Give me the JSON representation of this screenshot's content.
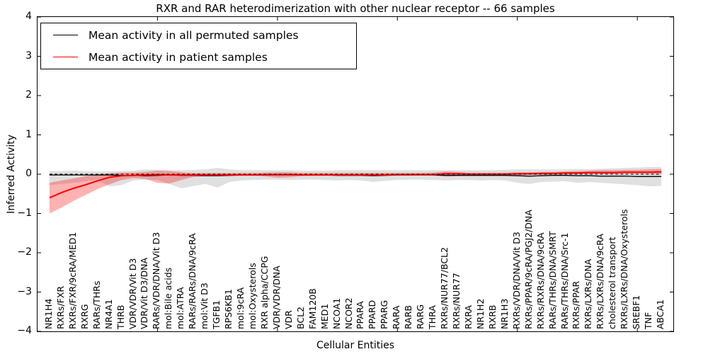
{
  "title": "RXR and RAR heterodimerization with other nuclear receptor -- 66 samples",
  "axes": {
    "ylabel": "Inferred Activity",
    "xlabel": "Cellular Entities",
    "ylim": [
      -4,
      4
    ],
    "yticks": [
      {
        "value": 4,
        "label": "4"
      },
      {
        "value": 3,
        "label": "3"
      },
      {
        "value": 2,
        "label": "2"
      },
      {
        "value": 1,
        "label": "1"
      },
      {
        "value": 0,
        "label": "0"
      },
      {
        "value": -1,
        "label": "−1"
      },
      {
        "value": -2,
        "label": "−2"
      },
      {
        "value": -3,
        "label": "−3"
      },
      {
        "value": -4,
        "label": "−4"
      }
    ],
    "xtick_positions": [
      10,
      20,
      30,
      40,
      50
    ],
    "tick_direction": "in",
    "grid": false
  },
  "legend": {
    "position": "upper left",
    "items": [
      {
        "label": "Mean activity in all permuted samples",
        "color": "#000000"
      },
      {
        "label": "Mean activity in patient samples",
        "color": "#ff0000"
      }
    ]
  },
  "chart_data": {
    "type": "line",
    "categories": [
      "NR1H4",
      "RXRs/FXR",
      "RXRs/FXR/9cRA/MED1",
      "RXRG",
      "RARs/THRs",
      "NR4A1",
      "THRB",
      "VDR/VDR/Vit D3",
      "VDR/Vit D3/DNA",
      "RARs/VDR/DNA/Vit D3",
      "mol:Bile acids",
      "mol:ATRA",
      "RARs/RARs/DNA/9cRA",
      "mol:Vit D3",
      "TGFB1",
      "RPS6KB1",
      "mol:9cRA",
      "mol:Oxysterols",
      "RXR alpha/CCPG",
      "VDR/VDR/DNA",
      "VDR",
      "BCL2",
      "FAM120B",
      "MED1",
      "NCOA1",
      "NCOR2",
      "PPARA",
      "PPARD",
      "PPARG",
      "RARA",
      "RARB",
      "RARG",
      "THRA",
      "RXRs/NUR77/BCL2",
      "RXRs/NUR77",
      "RXRA",
      "NR1H2",
      "RXRB",
      "NR1H3",
      "RXRs/VDR/DNA/Vit D3",
      "RXRs/PPAR/9cRA/PGJ2/DNA",
      "RXRs/RXRs/DNA/9cRA",
      "RARs/THRs/DNA/SMRT",
      "RARs/THRs/DNA/Src-1",
      "RXRs/PPAR",
      "RXRs/LXRs/DNA",
      "RXRs/LXRs/DNA/9cRA",
      "cholesterol transport",
      "RXRs/LXRs/DNA/Oxysterols",
      "SREBF1",
      "TNF",
      "ABCA1"
    ],
    "series": [
      {
        "name": "Mean activity in all permuted samples",
        "color": "#000000",
        "line_width": 1.3,
        "band_color": "rgba(0,0,0,0.12)",
        "values": [
          -0.02,
          -0.02,
          -0.02,
          -0.02,
          -0.02,
          -0.02,
          -0.03,
          -0.03,
          -0.04,
          -0.03,
          -0.02,
          -0.03,
          -0.03,
          -0.04,
          -0.04,
          -0.03,
          -0.02,
          -0.02,
          -0.02,
          -0.02,
          -0.02,
          -0.02,
          -0.02,
          -0.02,
          -0.03,
          -0.03,
          -0.03,
          -0.04,
          -0.03,
          -0.02,
          -0.02,
          -0.02,
          -0.02,
          -0.03,
          -0.03,
          -0.03,
          -0.03,
          -0.03,
          -0.03,
          -0.04,
          -0.05,
          -0.04,
          -0.03,
          -0.03,
          -0.04,
          -0.04,
          -0.05,
          -0.05,
          -0.05,
          -0.06,
          -0.06,
          -0.06
        ],
        "band_lower": [
          -0.28,
          -0.25,
          -0.22,
          -0.18,
          -0.15,
          -0.31,
          -0.28,
          -0.16,
          -0.14,
          -0.15,
          -0.25,
          -0.36,
          -0.3,
          -0.25,
          -0.34,
          -0.2,
          -0.16,
          -0.15,
          -0.14,
          -0.14,
          -0.15,
          -0.14,
          -0.14,
          -0.15,
          -0.16,
          -0.15,
          -0.16,
          -0.2,
          -0.17,
          -0.15,
          -0.14,
          -0.14,
          -0.15,
          -0.16,
          -0.15,
          -0.15,
          -0.16,
          -0.15,
          -0.16,
          -0.22,
          -0.25,
          -0.2,
          -0.19,
          -0.18,
          -0.22,
          -0.2,
          -0.22,
          -0.24,
          -0.26,
          -0.28,
          -0.31,
          -0.3
        ],
        "band_upper": [
          0.08,
          0.08,
          0.09,
          0.08,
          0.07,
          0.07,
          0.08,
          0.09,
          0.12,
          0.11,
          0.1,
          0.1,
          0.11,
          0.12,
          0.16,
          0.12,
          0.1,
          0.1,
          0.1,
          0.1,
          0.1,
          0.09,
          0.09,
          0.09,
          0.1,
          0.1,
          0.1,
          0.1,
          0.1,
          0.1,
          0.1,
          0.1,
          0.1,
          0.1,
          0.1,
          0.1,
          0.1,
          0.1,
          0.11,
          0.12,
          0.12,
          0.12,
          0.12,
          0.12,
          0.13,
          0.13,
          0.14,
          0.15,
          0.16,
          0.17,
          0.18,
          0.18
        ]
      },
      {
        "name": "Mean activity in patient samples",
        "color": "#ff0000",
        "line_width": 2,
        "band_color": "rgba(255,0,0,0.30)",
        "values": [
          -0.6,
          -0.47,
          -0.36,
          -0.27,
          -0.17,
          -0.08,
          -0.04,
          -0.03,
          -0.02,
          -0.01,
          -0.02,
          -0.02,
          -0.02,
          -0.02,
          -0.02,
          -0.02,
          -0.02,
          -0.02,
          -0.01,
          -0.01,
          -0.01,
          -0.02,
          -0.02,
          -0.02,
          -0.02,
          -0.02,
          -0.02,
          -0.02,
          -0.02,
          -0.01,
          -0.01,
          -0.01,
          -0.01,
          0.01,
          0.01,
          0.0,
          0.0,
          0.0,
          0.0,
          0.01,
          0.01,
          0.02,
          0.02,
          0.03,
          0.03,
          0.04,
          0.04,
          0.04,
          0.05,
          0.05,
          0.05,
          0.06
        ],
        "band_lower": [
          -1.0,
          -0.85,
          -0.68,
          -0.53,
          -0.38,
          -0.26,
          -0.15,
          -0.1,
          -0.12,
          -0.22,
          -0.24,
          -0.15,
          -0.07,
          -0.05,
          -0.05,
          -0.05,
          -0.04,
          -0.04,
          -0.06,
          -0.09,
          -0.08,
          -0.05,
          -0.04,
          -0.04,
          -0.04,
          -0.04,
          -0.04,
          -0.04,
          -0.04,
          -0.04,
          -0.04,
          -0.03,
          -0.04,
          -0.06,
          -0.05,
          -0.03,
          -0.03,
          -0.03,
          -0.03,
          -0.03,
          -0.02,
          -0.02,
          -0.01,
          -0.01,
          0.0,
          0.0,
          0.0,
          0.0,
          0.01,
          0.01,
          0.01,
          0.0
        ],
        "band_upper": [
          -0.22,
          -0.16,
          -0.11,
          -0.05,
          0.0,
          0.02,
          0.04,
          0.04,
          0.06,
          0.09,
          0.08,
          0.05,
          0.03,
          0.03,
          0.03,
          0.03,
          0.03,
          0.03,
          0.04,
          0.05,
          0.05,
          0.03,
          0.03,
          0.03,
          0.03,
          0.03,
          0.03,
          0.03,
          0.03,
          0.03,
          0.03,
          0.03,
          0.04,
          0.07,
          0.06,
          0.04,
          0.04,
          0.04,
          0.04,
          0.05,
          0.05,
          0.06,
          0.06,
          0.07,
          0.08,
          0.09,
          0.1,
          0.1,
          0.11,
          0.11,
          0.12,
          0.13
        ]
      }
    ],
    "zero_line": {
      "y": 0,
      "style": "dashed",
      "color": "#000000"
    }
  }
}
